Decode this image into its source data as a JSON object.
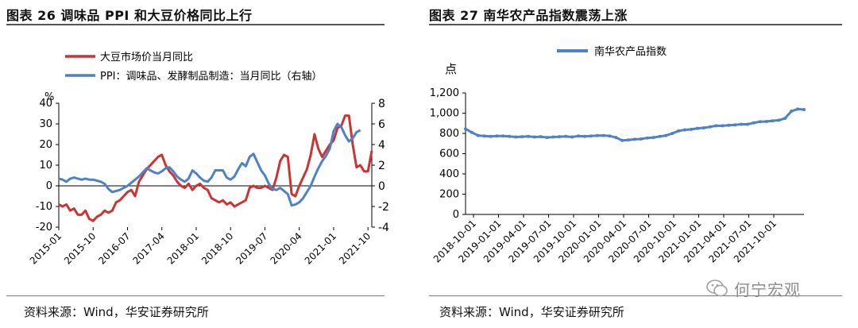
{
  "left": {
    "title": "图表 26 调味品 PPI 和大豆价格同比上行",
    "source": "资料来源：Wind，华安证券研究所"
  },
  "right": {
    "title": "图表 27 南华农产品指数震荡上涨",
    "source": "资料来源：Wind，华安证券研究所"
  },
  "watermark": {
    "text": "何宁宏观"
  },
  "colors": {
    "red_series": "#cc3333",
    "blue_series": "#4f81c7"
  },
  "chart_data": [
    {
      "type": "line",
      "title": "调味品 PPI 和大豆价格同比上行",
      "left_unit": "%",
      "ylim": [
        -20,
        40
      ],
      "y_ticks": [
        "-20",
        "-10",
        "0",
        "10",
        "20",
        "30",
        "40"
      ],
      "y2lim": [
        -4,
        8
      ],
      "y2_ticks": [
        "-4",
        "-2",
        "0",
        "2",
        "4",
        "6",
        "8"
      ],
      "x_ticks": [
        "2015-01",
        "2015-10",
        "2016-07",
        "2017-04",
        "2018-01",
        "2018-10",
        "2019-07",
        "2020-04",
        "2021-01",
        "2021-10"
      ],
      "x_count": 83,
      "legend_position": "top-left",
      "series": [
        {
          "name": "大豆市场价当月同比",
          "axis": "left",
          "values": [
            -9,
            -10,
            -9,
            -12,
            -11,
            -14,
            -14,
            -12,
            -16,
            -17,
            -15,
            -14,
            -12,
            -13,
            -12,
            -8,
            -7,
            -5,
            -3,
            -2,
            -5,
            2,
            5,
            8,
            10,
            12,
            14,
            15,
            10,
            7,
            5,
            2,
            0,
            -1,
            1,
            -2,
            0,
            1,
            -1,
            -2,
            -6,
            -7,
            -8,
            -7,
            -9,
            -8,
            -10,
            -9,
            -8,
            -7,
            -1,
            0,
            -1,
            -1,
            0,
            -1,
            -2,
            4,
            12,
            15,
            14,
            -4,
            -5,
            0,
            4,
            8,
            15,
            25,
            18,
            14,
            17,
            20,
            22,
            28,
            29,
            34,
            34,
            20,
            9,
            10,
            7,
            7,
            17
          ]
        },
        {
          "name": "PPI：调味品、发酵制品制造：当月同比（右轴）",
          "axis": "right",
          "values": [
            0.7,
            0.6,
            0.4,
            0.7,
            0.8,
            0.7,
            0.6,
            0.7,
            0.6,
            0.6,
            0.5,
            0.4,
            0.2,
            -0.3,
            -0.6,
            -0.5,
            -0.4,
            -0.2,
            0.0,
            0.3,
            0.6,
            0.9,
            1.3,
            1.7,
            1.5,
            1.3,
            1.2,
            1.4,
            1.7,
            1.8,
            1.4,
            0.9,
            0.6,
            0.4,
            0.7,
            1.5,
            1.2,
            0.8,
            0.5,
            0.4,
            0.8,
            1.5,
            1.5,
            1.5,
            0.8,
            0.6,
            0.9,
            1.6,
            2.2,
            1.9,
            2.8,
            3.1,
            2.3,
            1.5,
            1.0,
            0.2,
            -0.3,
            -0.4,
            -0.2,
            -0.5,
            -0.8,
            -1.9,
            -1.8,
            -1.6,
            -1.2,
            -0.6,
            0.0,
            0.9,
            1.7,
            2.4,
            2.9,
            3.6,
            5.3,
            6.0,
            5.7,
            4.9,
            4.3,
            4.6,
            5.2,
            5.4
          ]
        }
      ]
    },
    {
      "type": "line",
      "title": "南华农产品指数震荡上涨",
      "y_unit": "点",
      "ylim": [
        0,
        1200
      ],
      "y_ticks": [
        "0",
        "200",
        "400",
        "600",
        "800",
        "1,000",
        "1,200"
      ],
      "x_ticks": [
        "2018-10-01",
        "2019-01-01",
        "2019-04-01",
        "2019-07-01",
        "2019-10-01",
        "2020-01-01",
        "2020-04-01",
        "2020-07-01",
        "2020-10-01",
        "2021-01-01",
        "2021-04-01",
        "2021-07-01",
        "2021-10-01"
      ],
      "legend_position": "top-center",
      "series": [
        {
          "name": "南华农产品指数",
          "values": [
            845,
            810,
            780,
            775,
            770,
            775,
            775,
            770,
            765,
            768,
            770,
            765,
            768,
            760,
            765,
            768,
            770,
            765,
            775,
            770,
            775,
            778,
            780,
            775,
            760,
            730,
            735,
            742,
            745,
            755,
            760,
            770,
            780,
            800,
            825,
            835,
            840,
            850,
            855,
            865,
            875,
            875,
            880,
            885,
            890,
            890,
            905,
            915,
            918,
            925,
            930,
            950,
            1020,
            1040,
            1035
          ]
        }
      ]
    }
  ]
}
